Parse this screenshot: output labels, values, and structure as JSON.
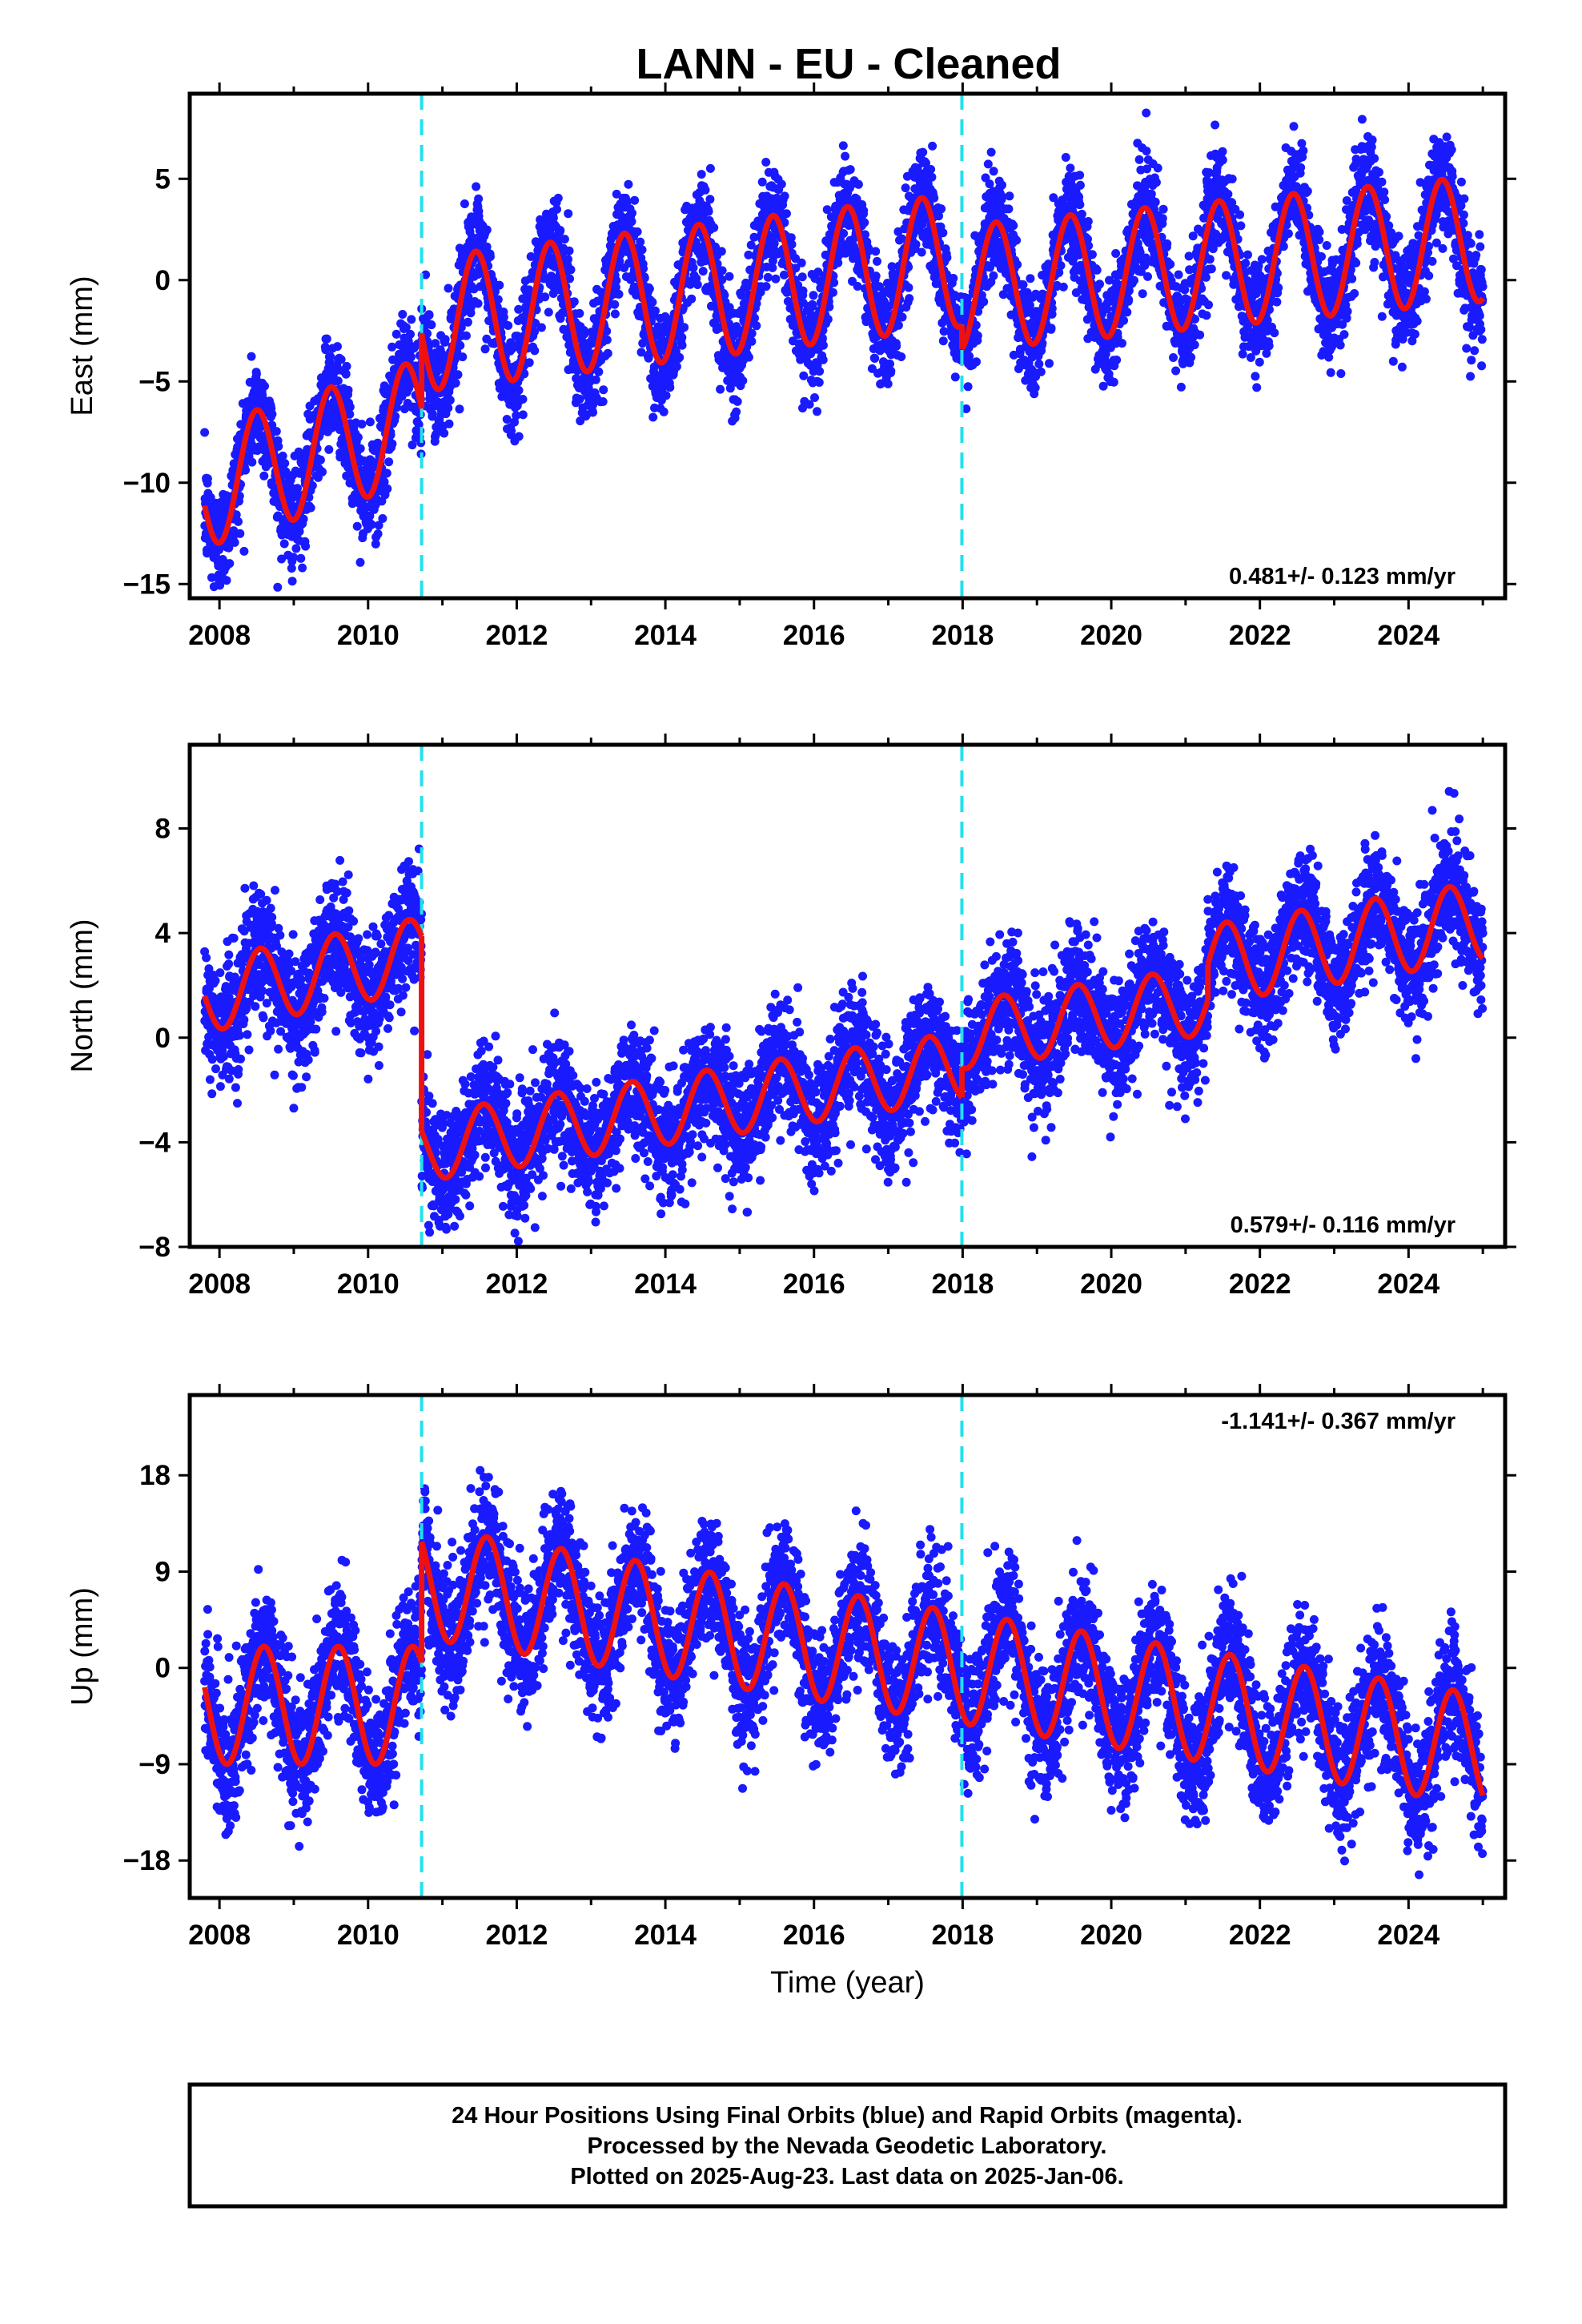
{
  "title": "LANN  - EU - Cleaned",
  "colors": {
    "data": "#1a1aff",
    "model": "#ee1111",
    "breaks": "#22e0ee",
    "frame": "#000000"
  },
  "chart_data": [
    {
      "type": "scatter",
      "name": "east",
      "ylabel": "East (mm)",
      "xlabel": "",
      "xlim": [
        2007.6,
        2025.3
      ],
      "ylim": [
        -15.7,
        9.2
      ],
      "yticks": [
        5,
        0,
        -5,
        -10,
        -15
      ],
      "ytick_labels": [
        "5",
        "0",
        "−5",
        "−10",
        "−15"
      ],
      "xticks": [
        2008,
        2010,
        2012,
        2014,
        2016,
        2018,
        2020,
        2022,
        2024
      ],
      "xtick_labels": [
        "2008",
        "2010",
        "2012",
        "2014",
        "2016",
        "2018",
        "2020",
        "2022",
        "2024"
      ],
      "rate": "0.481+/- 0.123 mm/yr",
      "rate_position": "bottom-right",
      "breaks": [
        2010.72,
        2017.99
      ],
      "model": [
        {
          "t0": 2007.8,
          "t1": 2010.72,
          "offset": -10.2,
          "trend": 1.13,
          "amp": 3.0,
          "phase_peak": 0.5,
          "ref": 2007.8
        },
        {
          "t0": 2010.72,
          "t1": 2017.99,
          "offset": -2.2,
          "trend": 0.44,
          "amp": 3.3,
          "phase_peak": 0.45,
          "ref": 2010.72
        },
        {
          "t0": 2017.99,
          "t1": 2025.0,
          "offset": -0.4,
          "trend": 0.35,
          "amp": 3.1,
          "phase_peak": 0.45,
          "ref": 2017.99
        }
      ],
      "scatter_sigma": 1.3
    },
    {
      "type": "scatter",
      "name": "north",
      "ylabel": "North (mm)",
      "xlabel": "",
      "xlim": [
        2007.6,
        2025.3
      ],
      "ylim": [
        -8,
        11.2
      ],
      "yticks": [
        8,
        4,
        0,
        -4,
        -8
      ],
      "ytick_labels": [
        "8",
        "4",
        "0",
        "−4",
        "−8"
      ],
      "xticks": [
        2008,
        2010,
        2012,
        2014,
        2016,
        2018,
        2020,
        2022,
        2024
      ],
      "xtick_labels": [
        "2008",
        "2010",
        "2012",
        "2014",
        "2016",
        "2018",
        "2020",
        "2022",
        "2024"
      ],
      "rate": "0.579+/- 0.116 mm/yr",
      "rate_position": "bottom-right",
      "breaks": [
        2010.72,
        2017.99
      ],
      "model": [
        {
          "t0": 2007.8,
          "t1": 2010.72,
          "offset": 1.6,
          "trend": 0.55,
          "amp": 1.4,
          "phase_peak": 0.55,
          "ref": 2007.8
        },
        {
          "t0": 2010.72,
          "t1": 2017.99,
          "offset": -4.2,
          "trend": 0.43,
          "amp": 1.3,
          "phase_peak": 0.55,
          "ref": 2010.72
        },
        {
          "t0": 2017.99,
          "t1": 2021.3,
          "offset": 0.1,
          "trend": 0.4,
          "amp": 1.3,
          "phase_peak": 0.55,
          "ref": 2017.99
        },
        {
          "t0": 2021.3,
          "t1": 2025.0,
          "offset": 2.8,
          "trend": 0.45,
          "amp": 1.5,
          "phase_peak": 0.55,
          "ref": 2021.3
        }
      ],
      "scatter_sigma": 1.15
    },
    {
      "type": "scatter",
      "name": "up",
      "ylabel": "Up (mm)",
      "xlabel": "Time (year)",
      "xlim": [
        2007.6,
        2025.3
      ],
      "ylim": [
        -21.5,
        25.5
      ],
      "yticks": [
        18,
        9,
        0,
        -9,
        -18
      ],
      "ytick_labels": [
        "18",
        "9",
        "0",
        "−9",
        "−18"
      ],
      "xticks": [
        2008,
        2010,
        2012,
        2014,
        2016,
        2018,
        2020,
        2022,
        2024
      ],
      "xtick_labels": [
        "2008",
        "2010",
        "2012",
        "2014",
        "2016",
        "2018",
        "2020",
        "2022",
        "2024"
      ],
      "rate": "-1.141+/- 0.367 mm/yr",
      "rate_position": "top-right",
      "breaks": [
        2010.72,
        2017.99
      ],
      "model": [
        {
          "t0": 2007.8,
          "t1": 2010.72,
          "offset": -3.5,
          "trend": 0.0,
          "amp": 5.5,
          "phase_peak": 0.6,
          "ref": 2007.8
        },
        {
          "t0": 2010.72,
          "t1": 2025.0,
          "offset": 8.0,
          "trend": -1.1,
          "amp": 5.2,
          "phase_peak": 0.6,
          "ref": 2010.72
        }
      ],
      "scatter_sigma": 3.0
    }
  ],
  "footer": {
    "line1": "24 Hour Positions Using Final Orbits (blue) and Rapid Orbits (magenta).",
    "line2": "Processed by the Nevada Geodetic Laboratory.",
    "line3": "Plotted on 2025-Aug-23. Last data on 2025-Jan-06."
  }
}
